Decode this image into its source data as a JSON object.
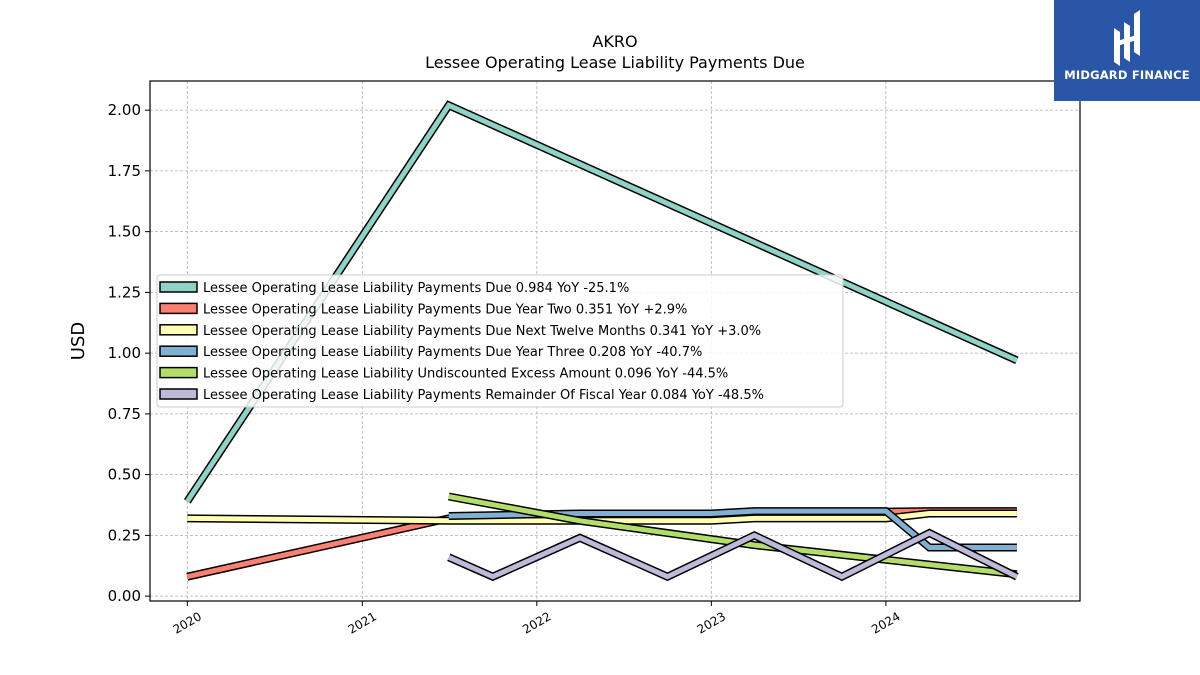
{
  "brand": {
    "name": "MIDGARD FINANCE",
    "bg_color": "#2a56a8"
  },
  "chart_data": {
    "type": "line",
    "title": "AKRO",
    "subtitle": "Lessee Operating Lease Liability Payments Due",
    "xlabel": "",
    "ylabel": "USD",
    "xlim": [
      "2019-10-15",
      "2025-02-10"
    ],
    "ylim": [
      -0.02,
      2.12
    ],
    "yticks": [
      0.0,
      0.25,
      0.5,
      0.75,
      1.0,
      1.25,
      1.5,
      1.75,
      2.0
    ],
    "ytick_labels": [
      "0.00",
      "0.25",
      "0.50",
      "0.75",
      "1.00",
      "1.25",
      "1.50",
      "1.75",
      "2.00"
    ],
    "xticks": [
      "2020-01-01",
      "2021-01-01",
      "2022-01-01",
      "2023-01-01",
      "2024-01-01"
    ],
    "xtick_labels": [
      "2020",
      "2021",
      "2022",
      "2023",
      "2024"
    ],
    "grid": true,
    "legend_position": "center-left",
    "series": [
      {
        "name": "Lessee Operating Lease Liability Payments Due",
        "legend_label": "Lessee Operating Lease Liability Payments Due  0.984 YoY -25.1%",
        "color": "#8dd3c7",
        "points": [
          [
            "2020-01-01",
            0.39
          ],
          [
            "2021-07-01",
            2.02
          ],
          [
            "2024-10-01",
            0.97
          ]
        ]
      },
      {
        "name": "Lessee Operating Lease Liability Payments Due Year Two",
        "legend_label": "Lessee Operating Lease Liability Payments Due Year Two  0.351 YoY +2.9%",
        "color": "#fb8072",
        "points": [
          [
            "2020-01-01",
            0.08
          ],
          [
            "2021-07-01",
            0.32
          ],
          [
            "2022-01-01",
            0.33
          ],
          [
            "2023-04-01",
            0.34
          ],
          [
            "2024-04-01",
            0.35
          ],
          [
            "2024-10-01",
            0.35
          ]
        ]
      },
      {
        "name": "Lessee Operating Lease Liability Payments Due Next Twelve Months",
        "legend_label": "Lessee Operating Lease Liability Payments Due Next Twelve Months  0.341 YoY +3.0%",
        "color": "#ffffb3",
        "points": [
          [
            "2020-01-01",
            0.32
          ],
          [
            "2021-07-01",
            0.31
          ],
          [
            "2022-01-01",
            0.31
          ],
          [
            "2023-01-01",
            0.31
          ],
          [
            "2023-04-01",
            0.32
          ],
          [
            "2024-01-01",
            0.32
          ],
          [
            "2024-04-01",
            0.34
          ],
          [
            "2024-10-01",
            0.34
          ]
        ]
      },
      {
        "name": "Lessee Operating Lease Liability Payments Due Year Three",
        "legend_label": "Lessee Operating Lease Liability Payments Due Year Three  0.208 YoY -40.7%",
        "color": "#80b1d3",
        "points": [
          [
            "2021-07-01",
            0.33
          ],
          [
            "2022-04-01",
            0.34
          ],
          [
            "2023-01-01",
            0.34
          ],
          [
            "2023-04-01",
            0.35
          ],
          [
            "2024-01-01",
            0.35
          ],
          [
            "2024-04-01",
            0.2
          ],
          [
            "2024-10-01",
            0.2
          ]
        ]
      },
      {
        "name": "Lessee Operating Lease Liability Undiscounted Excess Amount",
        "legend_label": "Lessee Operating Lease Liability Undiscounted Excess Amount  0.096 YoY -44.5%",
        "color": "#b3de69",
        "points": [
          [
            "2021-07-01",
            0.41
          ],
          [
            "2022-04-01",
            0.31
          ],
          [
            "2023-04-01",
            0.21
          ],
          [
            "2024-04-01",
            0.13
          ],
          [
            "2024-10-01",
            0.09
          ]
        ]
      },
      {
        "name": "Lessee Operating Lease Liability Payments Remainder Of Fiscal Year",
        "legend_label": "Lessee Operating Lease Liability Payments Remainder Of Fiscal Year  0.084 YoY -48.5%",
        "color": "#bebada",
        "points": [
          [
            "2021-07-01",
            0.16
          ],
          [
            "2021-10-01",
            0.08
          ],
          [
            "2022-04-01",
            0.24
          ],
          [
            "2022-10-01",
            0.08
          ],
          [
            "2023-04-01",
            0.25
          ],
          [
            "2023-10-01",
            0.08
          ],
          [
            "2024-04-01",
            0.26
          ],
          [
            "2024-10-01",
            0.08
          ]
        ]
      }
    ]
  }
}
